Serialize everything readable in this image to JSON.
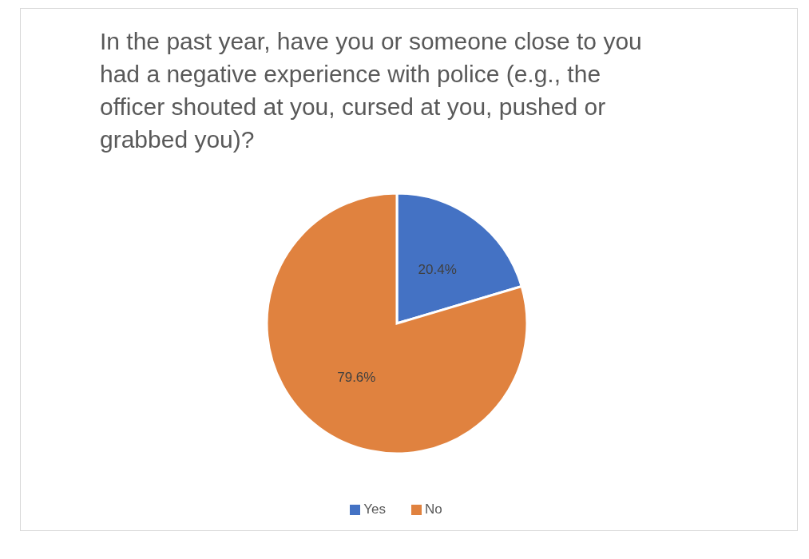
{
  "chart_data": {
    "type": "pie",
    "title": "In the past year, have you or someone close to you had a negative experience with police (e.g., the officer shouted at you, cursed at you, pushed or grabbed you)?",
    "categories": [
      "Yes",
      "No"
    ],
    "values": [
      20.4,
      79.6
    ],
    "colors": [
      "#4472c4",
      "#e0823f"
    ],
    "value_labels": [
      "20.4%",
      "79.6%"
    ],
    "legend": "bottom"
  }
}
